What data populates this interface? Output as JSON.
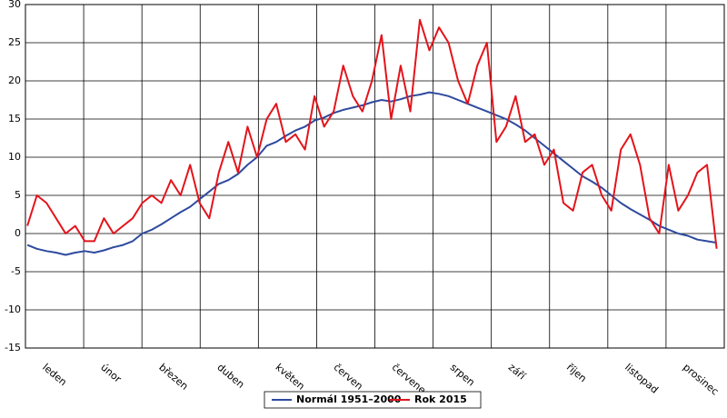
{
  "chart_data": {
    "type": "line",
    "categories": [
      "leden",
      "únor",
      "březen",
      "duben",
      "květen",
      "červen",
      "červenec",
      "srpen",
      "září",
      "říjen",
      "listopad",
      "prosinec"
    ],
    "x": [
      1,
      6,
      11,
      16,
      21,
      26,
      31,
      36,
      41,
      46,
      51,
      56,
      61,
      66,
      71,
      76,
      81,
      86,
      91,
      96,
      101,
      106,
      111,
      116,
      121,
      126,
      131,
      136,
      141,
      146,
      151,
      156,
      161,
      166,
      171,
      176,
      181,
      186,
      191,
      196,
      201,
      206,
      211,
      216,
      221,
      226,
      231,
      236,
      241,
      246,
      251,
      256,
      261,
      266,
      271,
      276,
      281,
      286,
      291,
      296,
      301,
      306,
      311,
      316,
      321,
      326,
      331,
      336,
      341,
      346,
      351,
      356,
      361
    ],
    "xlim": [
      0,
      365
    ],
    "series": [
      {
        "name": "Normál 1951–2000",
        "color": "#2e4a9e",
        "values": [
          -1.5,
          -2,
          -2.3,
          -2.5,
          -2.8,
          -2.5,
          -2.3,
          -2.5,
          -2.2,
          -1.8,
          -1.5,
          -1,
          0,
          0.5,
          1.2,
          2,
          2.8,
          3.5,
          4.5,
          5.5,
          6.5,
          7,
          7.8,
          9,
          10,
          11.5,
          12,
          12.8,
          13.5,
          14,
          14.8,
          15.2,
          15.8,
          16.2,
          16.5,
          16.8,
          17.2,
          17.5,
          17.3,
          17.6,
          18,
          18.2,
          18.5,
          18.3,
          18,
          17.5,
          17,
          16.5,
          16,
          15.5,
          15,
          14.3,
          13.5,
          12.5,
          11.5,
          10.5,
          9.5,
          8.5,
          7.5,
          6.8,
          6,
          5,
          4,
          3.2,
          2.5,
          1.8,
          1,
          0.5,
          0,
          -0.3,
          -0.8,
          -1,
          -1.2
        ]
      },
      {
        "name": "Rok 2015",
        "color": "#e3141b",
        "values": [
          1,
          5,
          4,
          2,
          0,
          1,
          -1,
          -1,
          2,
          0,
          1,
          2,
          4,
          5,
          4,
          7,
          5,
          9,
          4,
          2,
          8,
          12,
          8,
          14,
          10,
          15,
          17,
          12,
          13,
          11,
          18,
          14,
          16,
          22,
          18,
          16,
          20,
          26,
          15,
          22,
          16,
          28,
          24,
          27,
          25,
          20,
          17,
          22,
          25,
          12,
          14,
          18,
          12,
          13,
          9,
          11,
          4,
          3,
          8,
          9,
          5,
          3,
          11,
          13,
          9,
          2,
          0,
          9,
          3,
          5,
          8,
          9,
          -2
        ]
      }
    ],
    "ylim": [
      -15,
      30
    ],
    "yticks": [
      -15,
      -10,
      -5,
      0,
      5,
      10,
      15,
      20,
      25,
      30
    ],
    "grid": true
  }
}
